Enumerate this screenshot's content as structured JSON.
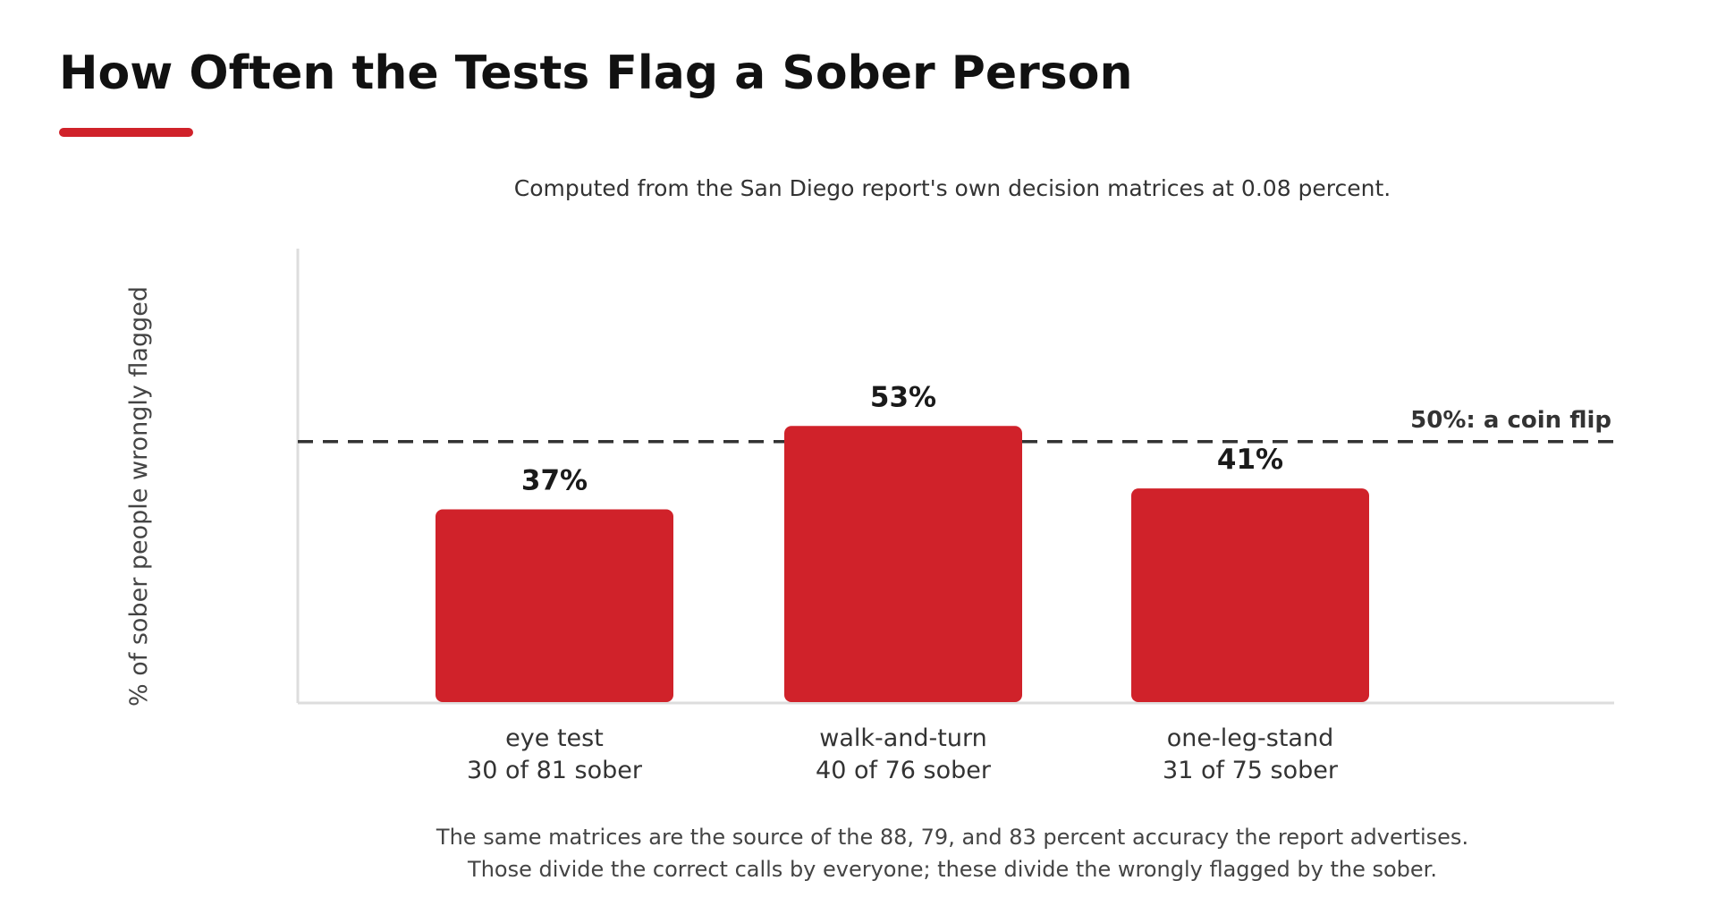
{
  "title": "How Often the Tests Flag a Sober Person",
  "subtitle": "Computed from the San Diego report's own decision matrices at 0.08 percent.",
  "footnote": {
    "line1": "The same matrices are the source of the 88, 79, and 83 percent accuracy the report advertises.",
    "line2": "Those divide the correct calls by everyone; these divide the wrongly flagged by the sober."
  },
  "colors": {
    "accent": "#d0222a",
    "bar": "#d0222a",
    "reference_line": "#333333",
    "axis": "#dddddd"
  },
  "chart_data": {
    "type": "bar",
    "title": "How Often the Tests Flag a Sober Person",
    "subtitle": "Computed from the San Diego report's own decision matrices at 0.08 percent.",
    "ylabel": "% of sober people wrongly flagged",
    "xlabel": "",
    "ylim": [
      0,
      60
    ],
    "grid": false,
    "categories": [
      {
        "name": "eye test",
        "detail": "30 of 81 sober"
      },
      {
        "name": "walk-and-turn",
        "detail": "40 of 76 sober"
      },
      {
        "name": "one-leg-stand",
        "detail": "31 of 75 sober"
      }
    ],
    "values": [
      37,
      53,
      41
    ],
    "data_labels": [
      "37%",
      "53%",
      "41%"
    ],
    "reference_line": {
      "value": 50,
      "label": "50%: a coin flip"
    }
  }
}
